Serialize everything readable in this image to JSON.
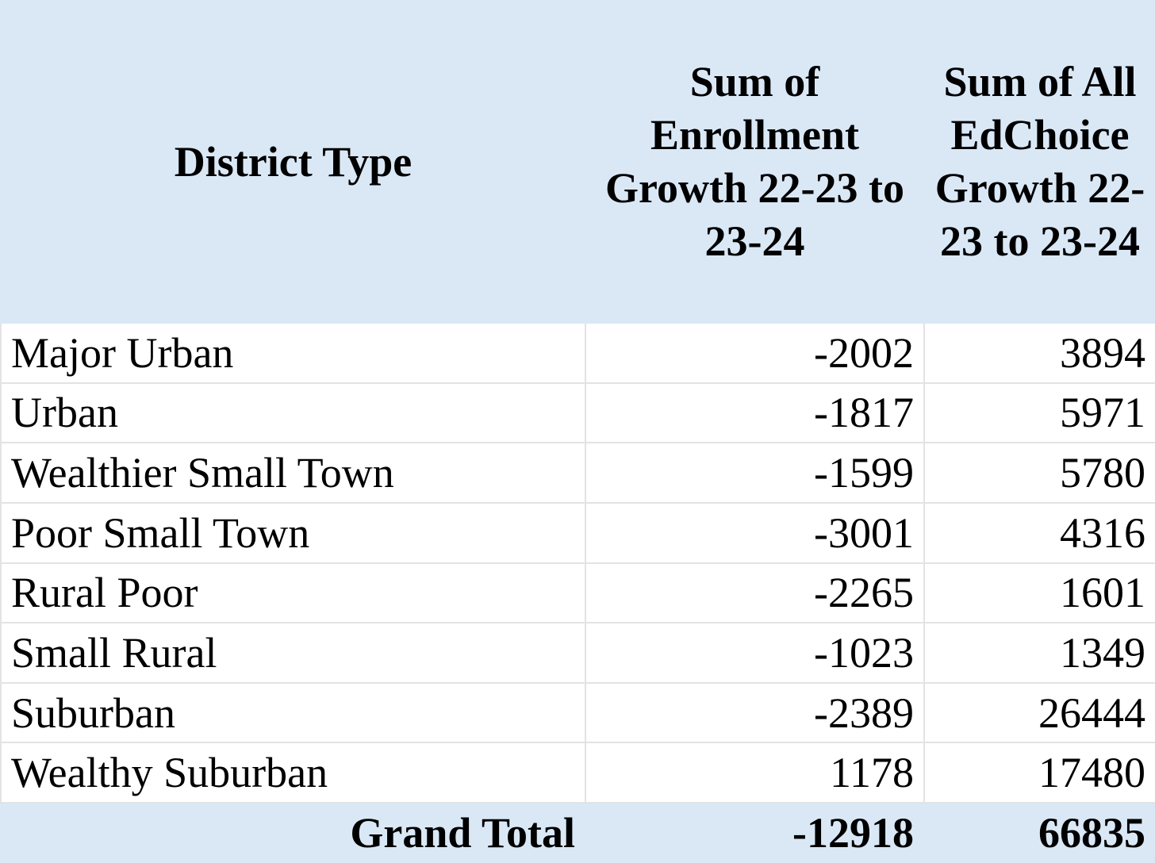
{
  "table": {
    "header": [
      "District Type",
      "Sum of Enrollment Growth 22-23 to 23-24",
      "Sum of All EdChoice Growth 22-23 to 23-24"
    ],
    "rows": [
      [
        "Major Urban",
        -2002,
        3894
      ],
      [
        "Urban",
        -1817,
        5971
      ],
      [
        "Wealthier Small Town",
        -1599,
        5780
      ],
      [
        "Poor Small Town",
        -3001,
        4316
      ],
      [
        "Rural Poor",
        -2265,
        1601
      ],
      [
        "Small Rural",
        -1023,
        1349
      ],
      [
        "Suburban",
        -2389,
        26444
      ],
      [
        "Wealthy Suburban",
        1178,
        17480
      ]
    ],
    "total": [
      "Grand Total",
      -12918,
      66835
    ]
  }
}
